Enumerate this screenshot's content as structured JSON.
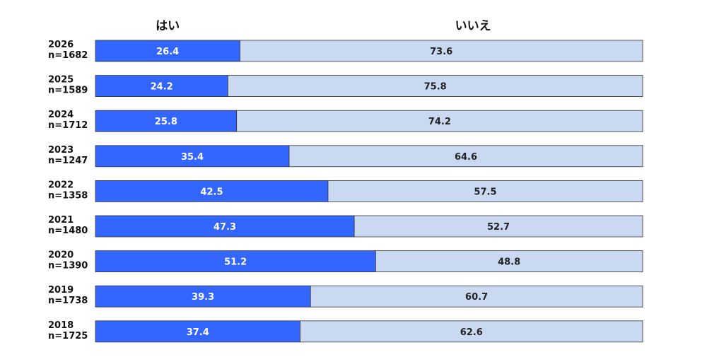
{
  "chart_data": {
    "type": "bar",
    "stacked": true,
    "orientation": "horizontal",
    "percent": true,
    "series": [
      {
        "name": "はい",
        "color": "#3366ff",
        "label_color": "#ffffff",
        "values": [
          26.4,
          24.2,
          25.8,
          35.4,
          42.5,
          47.3,
          51.2,
          39.3,
          37.4
        ]
      },
      {
        "name": "いいえ",
        "color": "#c9d9f2",
        "label_color": "#222222",
        "values": [
          73.6,
          75.8,
          74.2,
          64.6,
          57.5,
          52.7,
          48.8,
          60.7,
          62.6
        ]
      }
    ],
    "categories": [
      {
        "year": "2026",
        "n": "n=1682"
      },
      {
        "year": "2025",
        "n": "n=1589"
      },
      {
        "year": "2024",
        "n": "n=1712"
      },
      {
        "year": "2023",
        "n": "n=1247"
      },
      {
        "year": "2022",
        "n": "n=1358"
      },
      {
        "year": "2021",
        "n": "n=1480"
      },
      {
        "year": "2020",
        "n": "n=1390"
      },
      {
        "year": "2019",
        "n": "n=1738"
      },
      {
        "year": "2018",
        "n": "n=1725"
      }
    ],
    "xlim": [
      0,
      100
    ],
    "grid": false,
    "legend": "top"
  }
}
